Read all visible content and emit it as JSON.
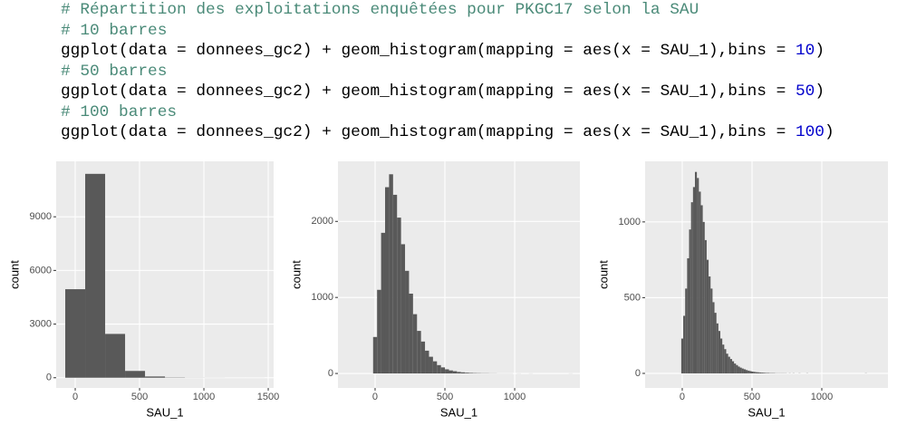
{
  "code": [
    {
      "parts": [
        {
          "text": "# Répartition des exploitations enquêtées pour PKGC17 selon la SAU",
          "color": "#4a8a78"
        }
      ]
    },
    {
      "parts": [
        {
          "text": "# 10 barres",
          "color": "#4a8a78"
        }
      ]
    },
    {
      "parts": [
        {
          "text": "ggplot(data = donnees_gc2) + geom_histogram(mapping = aes(x = SAU_1),bins = ",
          "color": "#000000"
        },
        {
          "text": "10",
          "color": "#0000cc"
        },
        {
          "text": ")",
          "color": "#000000"
        }
      ]
    },
    {
      "parts": [
        {
          "text": "# 50 barres",
          "color": "#4a8a78"
        }
      ]
    },
    {
      "parts": [
        {
          "text": "ggplot(data = donnees_gc2) + geom_histogram(mapping = aes(x = SAU_1),bins = ",
          "color": "#000000"
        },
        {
          "text": "50",
          "color": "#0000cc"
        },
        {
          "text": ")",
          "color": "#000000"
        }
      ]
    },
    {
      "parts": [
        {
          "text": "# 100 barres",
          "color": "#4a8a78"
        }
      ]
    },
    {
      "parts": [
        {
          "text": "ggplot(data = donnees_gc2) + geom_histogram(mapping = aes(x = SAU_1),bins = ",
          "color": "#000000"
        },
        {
          "text": "100",
          "color": "#0000cc"
        },
        {
          "text": ")",
          "color": "#000000"
        }
      ]
    }
  ],
  "chart_data": [
    {
      "type": "histogram",
      "x_label": "SAU_1",
      "y_label": "count",
      "color": "#595959",
      "grid": true,
      "bins": [
        -77.5,
        77.5,
        232.5,
        387.5,
        542.5,
        697.5,
        852.5,
        1007.5,
        1162.5,
        1317.5,
        1472.5
      ],
      "values": [
        4950,
        11400,
        2450,
        380,
        70,
        15,
        5,
        3,
        1,
        1
      ],
      "xlim": [
        -148,
        1542
      ],
      "xticks": [
        0,
        500,
        1000,
        1500
      ],
      "ylim": [
        -570,
        12100
      ],
      "yticks": [
        0,
        3000,
        6000,
        9000
      ]
    },
    {
      "type": "histogram",
      "x_label": "SAU_1",
      "y_label": "count",
      "color": "#595959",
      "grid": true,
      "bins": [
        -14.3,
        14.3,
        42.9,
        71.5,
        100.1,
        128.7,
        157.3,
        185.9,
        214.5,
        243.1,
        271.7,
        300.3,
        328.9,
        357.5,
        386.1,
        414.7,
        443.3,
        471.9,
        500.5,
        529.1,
        557.7,
        586.3,
        614.9,
        643.5,
        672.1,
        700.7,
        729.3,
        757.9,
        786.5,
        815.1,
        843.7,
        872.3,
        900.9,
        929.5,
        958.1,
        986.7,
        1015.3,
        1043.9,
        1072.5,
        1101.1,
        1129.7,
        1158.3,
        1186.9,
        1215.5,
        1244.1,
        1272.7,
        1301.3,
        1329.9,
        1358.5,
        1387.1,
        1415.7
      ],
      "values": [
        480,
        1100,
        1850,
        2450,
        2620,
        2350,
        2050,
        1700,
        1350,
        1050,
        780,
        560,
        420,
        300,
        220,
        160,
        110,
        80,
        55,
        40,
        30,
        20,
        15,
        10,
        7,
        5,
        4,
        3,
        3,
        2,
        2,
        1,
        1,
        1,
        1,
        0,
        1,
        0,
        0,
        1,
        0,
        0,
        0,
        0,
        0,
        0,
        0,
        0,
        0,
        1
      ],
      "xlim": [
        -266,
        1467
      ],
      "xticks": [
        0,
        500,
        1000
      ],
      "ylim": [
        -190,
        2790
      ],
      "yticks": [
        0,
        1000,
        2000
      ]
    },
    {
      "type": "histogram",
      "x_label": "SAU_1",
      "y_label": "count",
      "color": "#595959",
      "grid": true,
      "bins": [
        -7,
        7,
        21,
        35,
        49,
        63,
        77,
        91,
        105,
        119,
        133,
        147,
        161,
        175,
        189,
        203,
        217,
        231,
        245,
        259,
        273,
        287,
        301,
        315,
        329,
        343,
        357,
        371,
        385,
        399,
        413,
        427,
        441,
        455,
        469,
        483,
        497,
        511,
        525,
        539,
        553,
        567,
        581,
        595,
        609,
        623,
        637,
        651,
        665,
        679,
        693,
        707,
        721,
        735,
        749,
        763,
        777,
        791,
        805,
        819,
        833,
        847,
        861,
        875,
        889,
        903,
        917,
        931,
        945,
        959,
        973,
        987,
        1001,
        1015,
        1029,
        1043,
        1057,
        1071,
        1085,
        1099,
        1113,
        1127,
        1141,
        1155,
        1169,
        1183,
        1197,
        1211,
        1225,
        1239,
        1253,
        1267,
        1281,
        1295,
        1309,
        1323,
        1337,
        1351,
        1365,
        1379,
        1393
      ],
      "values": [
        230,
        380,
        560,
        760,
        950,
        1130,
        1230,
        1330,
        1290,
        1200,
        1110,
        1000,
        880,
        750,
        640,
        560,
        470,
        400,
        330,
        280,
        230,
        190,
        160,
        130,
        110,
        95,
        80,
        65,
        55,
        45,
        38,
        32,
        27,
        22,
        18,
        15,
        12,
        10,
        8,
        7,
        6,
        5,
        4,
        3,
        3,
        2,
        2,
        2,
        1,
        1,
        1,
        1,
        1,
        1,
        0,
        1,
        0,
        1,
        0,
        0,
        1,
        0,
        0,
        0,
        1,
        0,
        0,
        0,
        0,
        0,
        0,
        0,
        0,
        0,
        0,
        0,
        0,
        0,
        0,
        0,
        0,
        0,
        0,
        0,
        0,
        0,
        0,
        0,
        0,
        0,
        0,
        0,
        0,
        0,
        1,
        0,
        0,
        0,
        0,
        0
      ],
      "xlim": [
        -266,
        1474
      ],
      "xticks": [
        0,
        500,
        1000
      ],
      "ylim": [
        -96,
        1400
      ],
      "yticks": [
        0,
        500,
        1000
      ]
    }
  ]
}
